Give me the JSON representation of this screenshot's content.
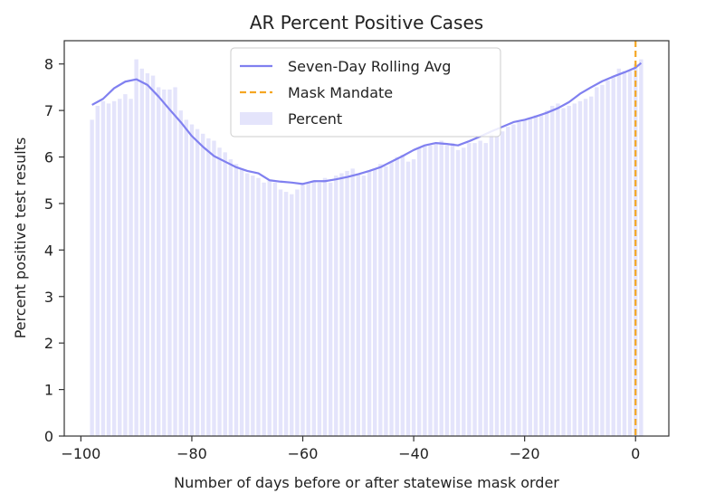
{
  "chart_data": {
    "type": "bar",
    "title": "AR Percent Positive Cases",
    "xlabel": "Number of days before or after statewise mask order",
    "ylabel": "Percent positive test results",
    "xlim": [
      -103,
      6
    ],
    "ylim": [
      0,
      8.5
    ],
    "xticks": [
      -100,
      -80,
      -60,
      -40,
      -20,
      0
    ],
    "xtick_labels": [
      "−100",
      "−80",
      "−60",
      "−40",
      "−20",
      "0"
    ],
    "yticks": [
      0,
      1,
      2,
      3,
      4,
      5,
      6,
      7,
      8
    ],
    "ytick_labels": [
      "0",
      "1",
      "2",
      "3",
      "4",
      "5",
      "6",
      "7",
      "8"
    ],
    "grid": false,
    "legend": {
      "placement": "upper center",
      "entries": [
        "Seven-Day Rolling Avg",
        "Mask Mandate",
        "Percent"
      ]
    },
    "colors": {
      "bar": "#e4e4fb",
      "line": "#8080f0",
      "mandate": "#f5a623",
      "axis": "#333333"
    },
    "mask_mandate_x": 0,
    "series": [
      {
        "name": "Percent",
        "kind": "bar",
        "x": [
          -98,
          -97,
          -96,
          -95,
          -94,
          -93,
          -92,
          -91,
          -90,
          -89,
          -88,
          -87,
          -86,
          -85,
          -84,
          -83,
          -82,
          -81,
          -80,
          -79,
          -78,
          -77,
          -76,
          -75,
          -74,
          -73,
          -72,
          -71,
          -70,
          -69,
          -68,
          -67,
          -66,
          -65,
          -64,
          -63,
          -62,
          -61,
          -60,
          -59,
          -58,
          -57,
          -56,
          -55,
          -54,
          -53,
          -52,
          -51,
          -50,
          -49,
          -48,
          -47,
          -46,
          -45,
          -44,
          -43,
          -42,
          -41,
          -40,
          -39,
          -38,
          -37,
          -36,
          -35,
          -34,
          -33,
          -32,
          -31,
          -30,
          -29,
          -28,
          -27,
          -26,
          -25,
          -24,
          -23,
          -22,
          -21,
          -20,
          -19,
          -18,
          -17,
          -16,
          -15,
          -14,
          -13,
          -12,
          -11,
          -10,
          -9,
          -8,
          -7,
          -6,
          -5,
          -4,
          -3,
          -2,
          -1,
          0,
          1
        ],
        "values": [
          6.8,
          7.1,
          7.2,
          7.15,
          7.2,
          7.25,
          7.35,
          7.25,
          8.1,
          7.9,
          7.8,
          7.75,
          7.5,
          7.45,
          7.45,
          7.5,
          7.0,
          6.8,
          6.7,
          6.6,
          6.5,
          6.4,
          6.35,
          6.2,
          6.1,
          5.95,
          5.85,
          5.75,
          5.65,
          5.6,
          5.55,
          5.45,
          5.5,
          5.45,
          5.3,
          5.25,
          5.2,
          5.3,
          5.45,
          5.45,
          5.5,
          5.45,
          5.55,
          5.45,
          5.6,
          5.65,
          5.7,
          5.75,
          5.65,
          5.6,
          5.7,
          5.75,
          5.85,
          5.8,
          5.9,
          6.0,
          6.05,
          5.9,
          5.95,
          6.2,
          6.25,
          6.25,
          6.3,
          6.35,
          6.25,
          6.3,
          6.15,
          6.2,
          6.3,
          6.3,
          6.35,
          6.3,
          6.5,
          6.45,
          6.55,
          6.65,
          6.7,
          6.75,
          6.8,
          6.85,
          6.9,
          6.9,
          7.0,
          7.1,
          7.15,
          7.05,
          7.1,
          7.15,
          7.2,
          7.25,
          7.3,
          7.5,
          7.55,
          7.65,
          7.75,
          7.9,
          7.85,
          7.85,
          8.0,
          8.1
        ]
      },
      {
        "name": "Seven-Day Rolling Avg",
        "kind": "line",
        "x": [
          -98,
          -96,
          -94,
          -92,
          -90,
          -88,
          -86,
          -84,
          -82,
          -80,
          -78,
          -76,
          -74,
          -72,
          -70,
          -68,
          -66,
          -64,
          -62,
          -60,
          -58,
          -56,
          -54,
          -52,
          -50,
          -48,
          -46,
          -44,
          -42,
          -40,
          -38,
          -36,
          -34,
          -32,
          -30,
          -28,
          -26,
          -24,
          -22,
          -20,
          -18,
          -16,
          -14,
          -12,
          -10,
          -8,
          -6,
          -4,
          -2,
          0,
          1
        ],
        "values": [
          7.12,
          7.25,
          7.48,
          7.62,
          7.67,
          7.55,
          7.3,
          7.02,
          6.75,
          6.45,
          6.22,
          6.02,
          5.9,
          5.78,
          5.7,
          5.65,
          5.5,
          5.47,
          5.45,
          5.42,
          5.48,
          5.48,
          5.52,
          5.57,
          5.63,
          5.7,
          5.78,
          5.9,
          6.02,
          6.15,
          6.25,
          6.3,
          6.28,
          6.25,
          6.34,
          6.44,
          6.55,
          6.65,
          6.75,
          6.8,
          6.87,
          6.95,
          7.05,
          7.18,
          7.36,
          7.5,
          7.63,
          7.73,
          7.82,
          7.92,
          8.02
        ]
      }
    ]
  }
}
